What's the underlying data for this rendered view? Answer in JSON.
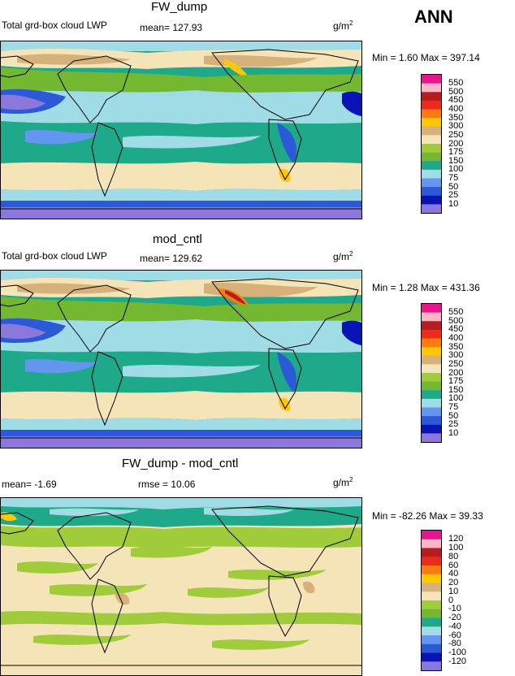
{
  "season": "ANN",
  "chart_data": [
    {
      "type": "heatmap",
      "title": "FW_dump",
      "subtitle": "Total grd-box cloud LWP",
      "stat_text": "mean= 127.93",
      "units": "g/m",
      "units_exp": "2",
      "minmax_text": "Min =    1.60 Max = 397.14",
      "mean": 127.93,
      "min": 1.6,
      "max": 397.14,
      "contour_levels": [
        "550",
        "500",
        "450",
        "400",
        "350",
        "300",
        "250",
        "200",
        "175",
        "150",
        "100",
        "75",
        "50",
        "25",
        "10"
      ],
      "colors": [
        "#e8168c",
        "#ffb4c8",
        "#b41e1e",
        "#ee2a1c",
        "#ff7a10",
        "#ffc800",
        "#d6b27a",
        "#f5e4b8",
        "#a0cc3c",
        "#74b832",
        "#1eaa8a",
        "#a0dce6",
        "#6496f0",
        "#2c5ad6",
        "#0a14b4",
        "#8c78dc"
      ]
    },
    {
      "type": "heatmap",
      "title": "mod_cntl",
      "subtitle": "Total grd-box cloud LWP",
      "stat_text": "mean= 129.62",
      "units": "g/m",
      "units_exp": "2",
      "minmax_text": "Min =    1.28 Max = 431.36",
      "mean": 129.62,
      "min": 1.28,
      "max": 431.36,
      "contour_levels": [
        "550",
        "500",
        "450",
        "400",
        "350",
        "300",
        "250",
        "200",
        "175",
        "150",
        "100",
        "75",
        "50",
        "25",
        "10"
      ],
      "colors": [
        "#e8168c",
        "#ffb4c8",
        "#b41e1e",
        "#ee2a1c",
        "#ff7a10",
        "#ffc800",
        "#d6b27a",
        "#f5e4b8",
        "#a0cc3c",
        "#74b832",
        "#1eaa8a",
        "#a0dce6",
        "#6496f0",
        "#2c5ad6",
        "#0a14b4",
        "#8c78dc"
      ]
    },
    {
      "type": "heatmap",
      "title": "FW_dump - mod_cntl",
      "stat_text": "mean=   -1.69",
      "rmse_text": "rmse =   10.06",
      "units": "g/m",
      "units_exp": "2",
      "minmax_text": "Min = -82.26 Max =  39.33",
      "mean": -1.69,
      "rmse": 10.06,
      "min": -82.26,
      "max": 39.33,
      "contour_levels": [
        "120",
        "100",
        "80",
        "60",
        "40",
        "20",
        "10",
        "0",
        "-10",
        "-20",
        "-40",
        "-60",
        "-80",
        "-100",
        "-120"
      ],
      "colors": [
        "#e8168c",
        "#ffb4c8",
        "#b41e1e",
        "#ee2a1c",
        "#ff7a10",
        "#ffc800",
        "#d6b27a",
        "#f5e4b8",
        "#a0cc3c",
        "#74b832",
        "#1eaa8a",
        "#a0dce6",
        "#6496f0",
        "#2c5ad6",
        "#0a14b4",
        "#8c78dc"
      ]
    }
  ]
}
